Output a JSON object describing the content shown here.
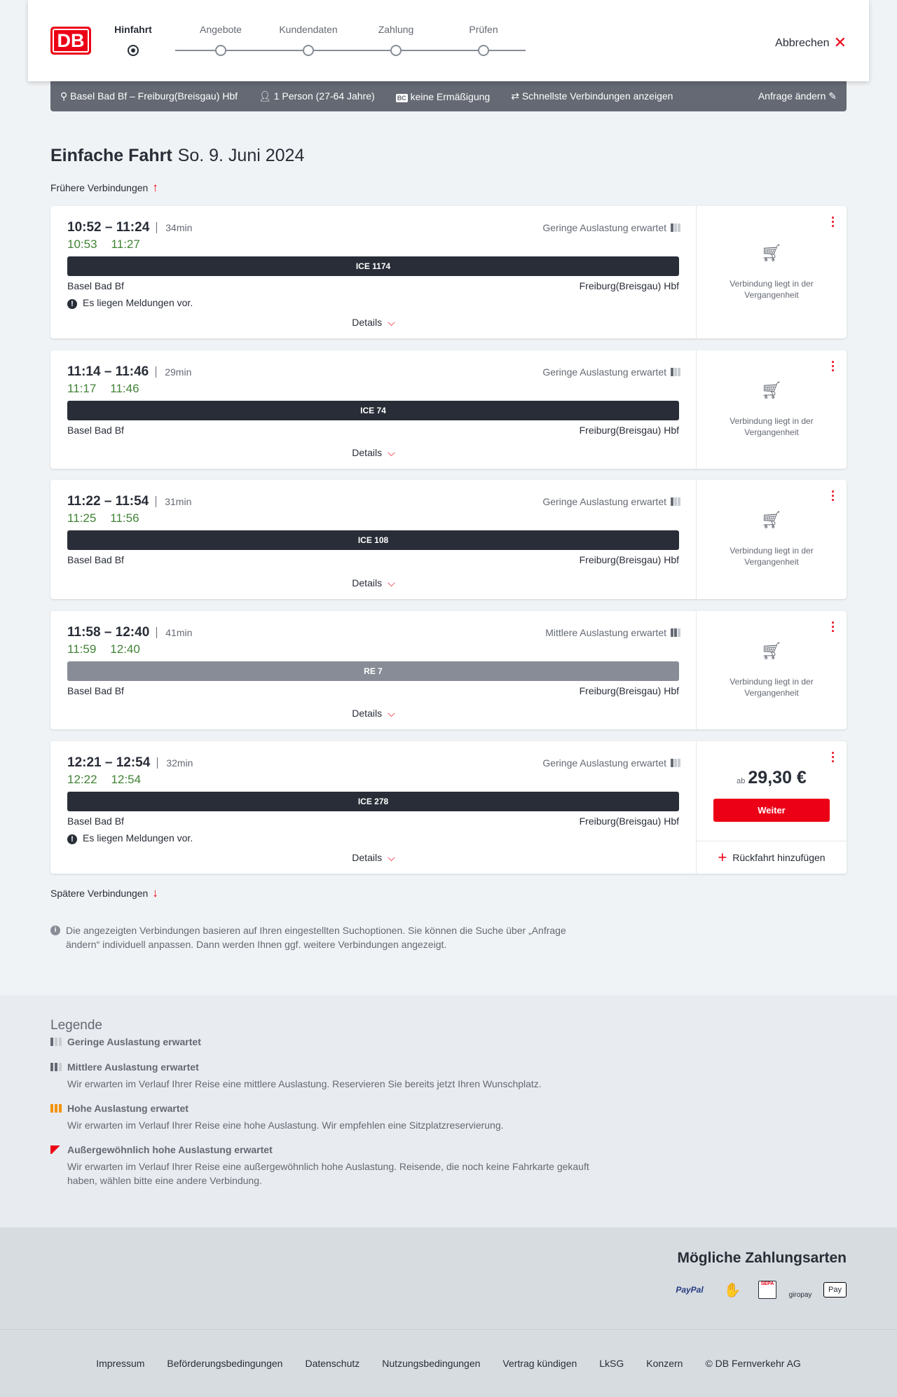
{
  "header": {
    "logo": "DB",
    "steps": [
      "Hinfahrt",
      "Angebote",
      "Kundendaten",
      "Zahlung",
      "Prüfen"
    ],
    "active_step": 0,
    "cancel": "Abbrechen"
  },
  "summary": {
    "route": "Basel Bad Bf – Freiburg(Breisgau) Hbf",
    "persons": "1 Person (27-64 Jahre)",
    "discount_badge": "BC",
    "discount": "keine Ermäßigung",
    "option": "Schnellste Verbindungen anzeigen",
    "edit": "Anfrage ändern"
  },
  "title": {
    "type": "Einfache Fahrt",
    "date": "So. 9. Juni 2024"
  },
  "earlier": "Frühere Verbindungen",
  "later": "Spätere Verbindungen",
  "details_label": "Details",
  "past_label": "Verbindung liegt in der Vergangenheit",
  "message": "Es liegen Meldungen vor.",
  "connections": [
    {
      "time": "10:52 – 11:24",
      "duration": "34min",
      "rt_dep": "10:53",
      "rt_arr": "11:27",
      "occupancy": "Geringe Auslastung erwartet",
      "train": "ICE 1174",
      "from": "Basel Bad Bf",
      "to": "Freiburg(Breisgau) Hbf",
      "has_message": true
    },
    {
      "time": "11:14 – 11:46",
      "duration": "29min",
      "rt_dep": "11:17",
      "rt_arr": "11:46",
      "occupancy": "Geringe Auslastung erwartet",
      "train": "ICE 74",
      "from": "Basel Bad Bf",
      "to": "Freiburg(Breisgau) Hbf",
      "has_message": false
    },
    {
      "time": "11:22 – 11:54",
      "duration": "31min",
      "rt_dep": "11:25",
      "rt_arr": "11:56",
      "occupancy": "Geringe Auslastung erwartet",
      "train": "ICE 108",
      "from": "Basel Bad Bf",
      "to": "Freiburg(Breisgau) Hbf",
      "has_message": false
    },
    {
      "time": "11:58 – 12:40",
      "duration": "41min",
      "rt_dep": "11:59",
      "rt_arr": "12:40",
      "occupancy": "Mittlere Auslastung erwartet",
      "train": "RE 7",
      "from": "Basel Bad Bf",
      "to": "Freiburg(Breisgau) Hbf",
      "has_message": false
    },
    {
      "time": "12:21 – 12:54",
      "duration": "32min",
      "rt_dep": "12:22",
      "rt_arr": "12:54",
      "occupancy": "Geringe Auslastung erwartet",
      "train": "ICE 278",
      "from": "Basel Bad Bf",
      "to": "Freiburg(Breisgau) Hbf",
      "has_message": true,
      "price_prefix": "ab",
      "price": "29,30 €",
      "button": "Weiter",
      "return": "Rückfahrt hinzufügen"
    }
  ],
  "info": "Die angezeigten Verbindungen basieren auf Ihren eingestellten Suchoptionen. Sie können die Suche über „Anfrage ändern“ individuell anpassen. Dann werden Ihnen ggf. weitere Verbindungen angezeigt.",
  "legend": {
    "title": "Legende",
    "items": [
      {
        "title": "Geringe Auslastung erwartet",
        "text": ""
      },
      {
        "title": "Mittlere Auslastung erwartet",
        "text": "Wir erwarten im Verlauf Ihrer Reise eine mittlere Auslastung. Reservieren Sie bereits jetzt Ihren Wunschplatz."
      },
      {
        "title": "Hohe Auslastung erwartet",
        "text": "Wir erwarten im Verlauf Ihrer Reise eine hohe Auslastung. Wir empfehlen eine Sitzplatzreservierung."
      },
      {
        "title": "Außergewöhnlich hohe Auslastung erwartet",
        "text": "Wir erwarten im Verlauf Ihrer Reise eine außergewöhnlich hohe Auslastung. Reisende, die noch keine Fahrkarte gekauft haben, wählen bitte eine andere Verbindung."
      }
    ]
  },
  "payment": {
    "title": "Mögliche Zahlungsarten",
    "methods": [
      "PayPal",
      "Kreditkarte",
      "SEPA",
      "giropay",
      "Pay"
    ]
  },
  "footer": [
    "Impressum",
    "Beförderungsbedingungen",
    "Datenschutz",
    "Nutzungsbedingungen",
    "Vertrag kündigen",
    "LkSG",
    "Konzern",
    "© DB Fernverkehr AG"
  ],
  "colors": {
    "brand": "#ec0016",
    "realtime": "#408335",
    "dark": "#282d37"
  }
}
